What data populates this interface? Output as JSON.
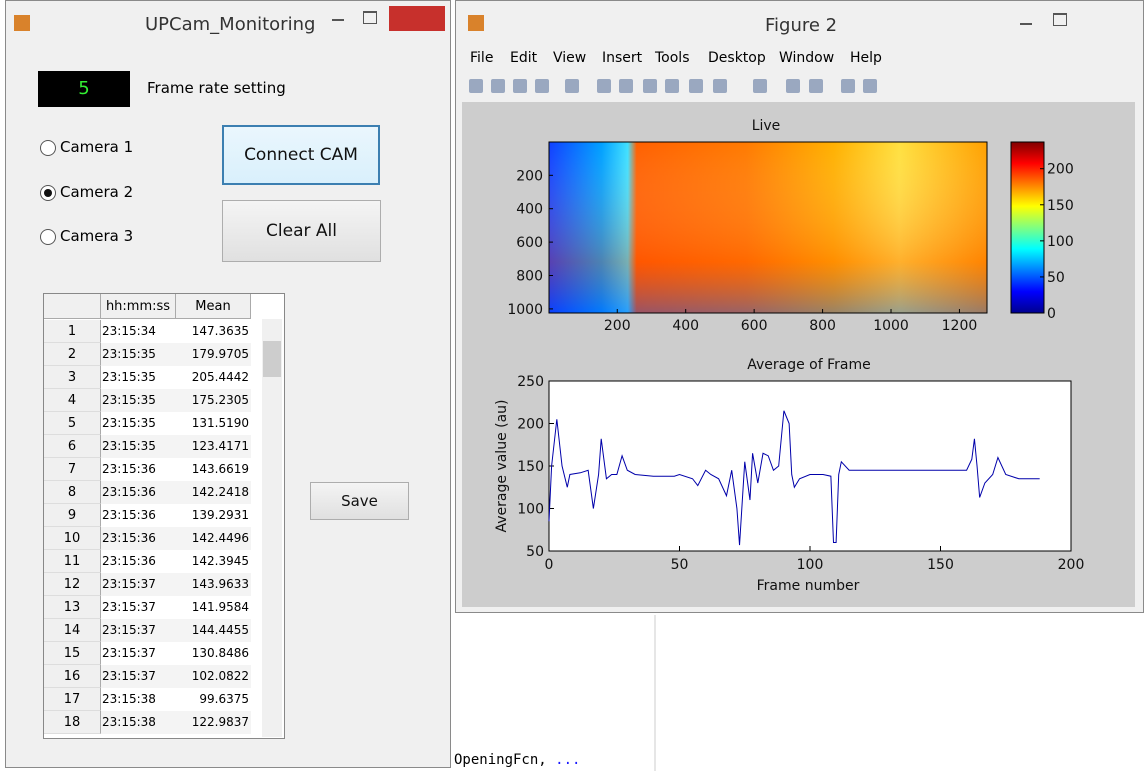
{
  "left_window": {
    "title": "UPCam_Monitoring",
    "frame_rate": "5",
    "frame_rate_label": "Frame rate setting",
    "radios": [
      {
        "label": "Camera 1",
        "selected": false
      },
      {
        "label": "Camera 2",
        "selected": true
      },
      {
        "label": "Camera 3",
        "selected": false
      }
    ],
    "connect_button": "Connect CAM",
    "clear_button": "Clear All",
    "save_button": "Save",
    "table": {
      "columns": [
        "hh:mm:ss",
        "Mean"
      ],
      "rows": [
        [
          "1",
          "23:15:34",
          "147.3635"
        ],
        [
          "2",
          "23:15:35",
          "179.9705"
        ],
        [
          "3",
          "23:15:35",
          "205.4442"
        ],
        [
          "4",
          "23:15:35",
          "175.2305"
        ],
        [
          "5",
          "23:15:35",
          "131.5190"
        ],
        [
          "6",
          "23:15:35",
          "123.4171"
        ],
        [
          "7",
          "23:15:36",
          "143.6619"
        ],
        [
          "8",
          "23:15:36",
          "142.2418"
        ],
        [
          "9",
          "23:15:36",
          "139.2931"
        ],
        [
          "10",
          "23:15:36",
          "142.4496"
        ],
        [
          "11",
          "23:15:36",
          "142.3945"
        ],
        [
          "12",
          "23:15:37",
          "143.9633"
        ],
        [
          "13",
          "23:15:37",
          "141.9584"
        ],
        [
          "14",
          "23:15:37",
          "144.4455"
        ],
        [
          "15",
          "23:15:37",
          "130.8486"
        ],
        [
          "16",
          "23:15:37",
          "102.0822"
        ],
        [
          "17",
          "23:15:38",
          "99.6375"
        ],
        [
          "18",
          "23:15:38",
          "122.9837"
        ]
      ]
    }
  },
  "figure_window": {
    "title": "Figure 2",
    "menu": [
      "File",
      "Edit",
      "View",
      "Insert",
      "Tools",
      "Desktop",
      "Window",
      "Help"
    ],
    "live": {
      "title": "Live",
      "xlim": [
        0.5,
        1280.5
      ],
      "xticks": [
        200,
        400,
        600,
        800,
        1000,
        1200
      ],
      "ylim": [
        0.5,
        1024.5
      ],
      "yticks": [
        200,
        400,
        600,
        800,
        1000
      ],
      "colorbar": {
        "lim": [
          0,
          237
        ],
        "ticks": [
          0,
          50,
          100,
          150,
          200
        ]
      }
    },
    "chart_data": {
      "type": "line",
      "title": "Average of Frame",
      "xlabel": "Frame number",
      "ylabel": "Average value (au)",
      "xlim": [
        0,
        200
      ],
      "xticks": [
        0,
        50,
        100,
        150,
        200
      ],
      "ylim": [
        50,
        250
      ],
      "yticks": [
        50,
        100,
        150,
        200,
        250
      ],
      "color": "#0000aa",
      "x": [
        0,
        1,
        3,
        5,
        7,
        8,
        12,
        15,
        17,
        19,
        20,
        22,
        24,
        26,
        28,
        30,
        33,
        40,
        48,
        50,
        55,
        57,
        60,
        62,
        65,
        68,
        70,
        72,
        73,
        75,
        77,
        78,
        80,
        82,
        84,
        86,
        88,
        90,
        92,
        93,
        94,
        96,
        100,
        105,
        108,
        109,
        110,
        111,
        112,
        115,
        130,
        150,
        160,
        162,
        163,
        164,
        165,
        167,
        170,
        172,
        175,
        180,
        188
      ],
      "values": [
        85,
        150,
        205,
        150,
        125,
        140,
        142,
        145,
        100,
        140,
        182,
        135,
        140,
        140,
        162,
        145,
        140,
        138,
        138,
        140,
        135,
        127,
        145,
        140,
        135,
        115,
        145,
        100,
        57,
        155,
        110,
        165,
        130,
        165,
        162,
        145,
        150,
        215,
        200,
        140,
        125,
        135,
        140,
        140,
        138,
        60,
        60,
        140,
        155,
        145,
        145,
        145,
        145,
        158,
        182,
        150,
        113,
        130,
        140,
        160,
        140,
        135,
        135
      ]
    }
  },
  "console": {
    "code": "OpeningFcn,",
    "continuation": "..."
  }
}
